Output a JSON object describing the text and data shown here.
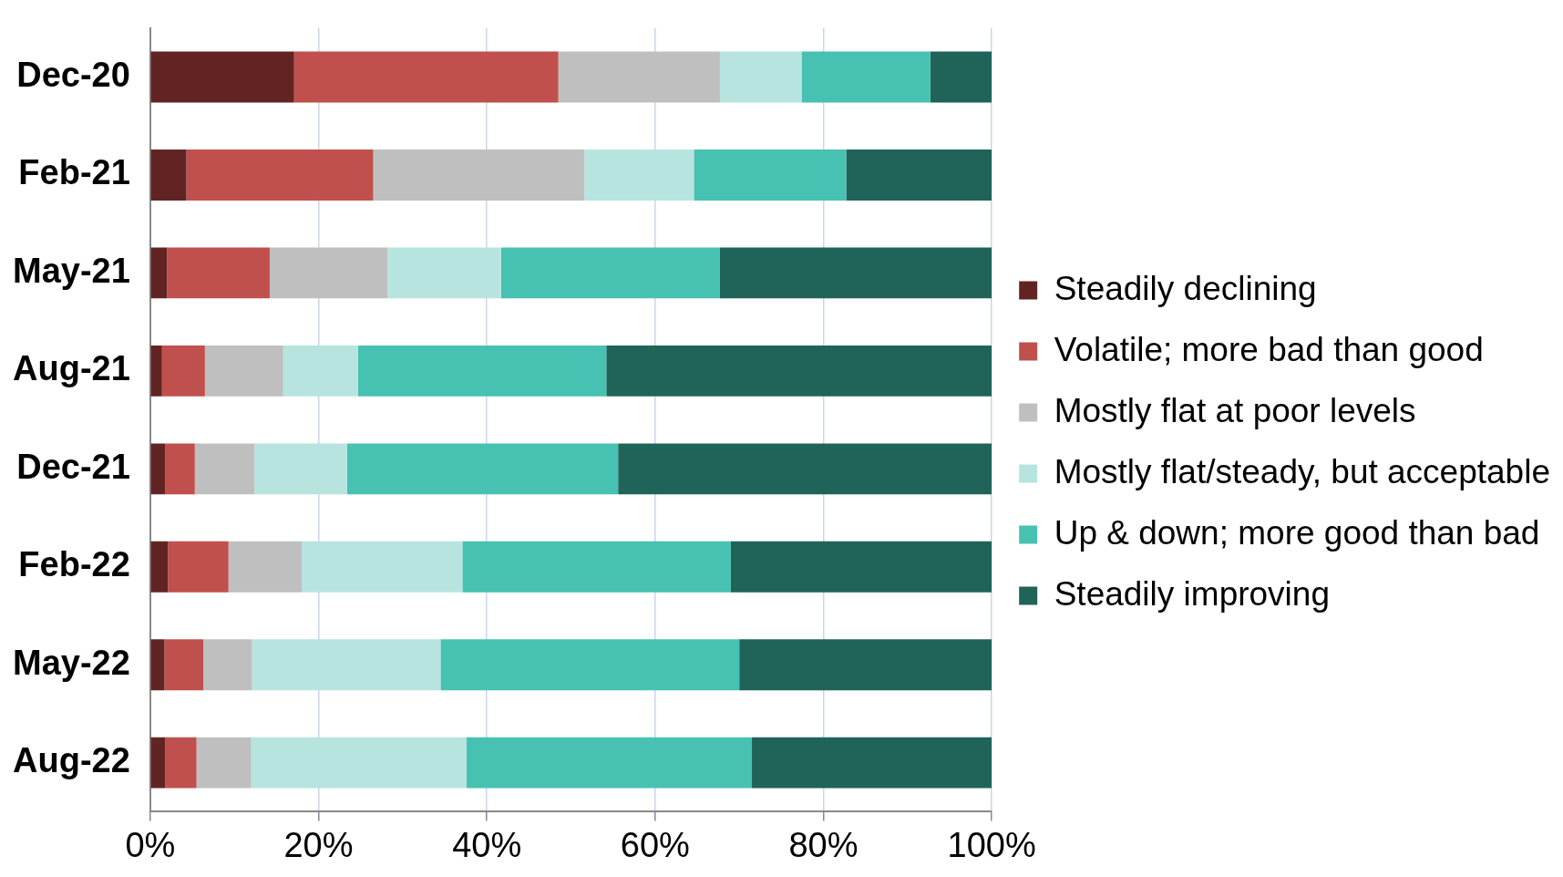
{
  "chart_data": {
    "type": "bar",
    "orientation": "horizontal",
    "stacked": true,
    "categories": [
      "Dec-20",
      "Feb-21",
      "May-21",
      "Aug-21",
      "Dec-21",
      "Feb-22",
      "May-22",
      "Aug-22"
    ],
    "series": [
      {
        "name": "Steadily declining",
        "color": "#622423",
        "values": [
          17.1,
          4.3,
          2.0,
          1.4,
          1.8,
          2.1,
          1.7,
          1.8
        ]
      },
      {
        "name": "Volatile; more bad than good",
        "color": "#c0504d",
        "values": [
          31.4,
          22.2,
          12.2,
          5.1,
          3.5,
          7.2,
          4.6,
          3.7
        ]
      },
      {
        "name": "Mostly flat at poor levels",
        "color": "#bfbfbf",
        "values": [
          19.2,
          25.1,
          14.0,
          9.3,
          7.1,
          8.7,
          5.8,
          6.5
        ]
      },
      {
        "name": "Mostly flat/steady, but acceptable",
        "color": "#b7e4df",
        "values": [
          9.7,
          13.0,
          13.5,
          8.9,
          11.0,
          19.1,
          22.4,
          25.6
        ]
      },
      {
        "name": "Up & down; more good than bad",
        "color": "#47c1b2",
        "values": [
          15.3,
          18.1,
          26.0,
          29.5,
          32.2,
          31.9,
          35.5,
          33.9
        ]
      },
      {
        "name": "Steadily improving",
        "color": "#206358",
        "values": [
          7.3,
          17.3,
          32.3,
          45.8,
          44.4,
          31.0,
          30.0,
          28.5
        ]
      }
    ],
    "xlim": [
      0,
      100
    ],
    "xticks": [
      {
        "value": 0,
        "label": "0%"
      },
      {
        "value": 20,
        "label": "20%"
      },
      {
        "value": 40,
        "label": "40%"
      },
      {
        "value": 60,
        "label": "60%"
      },
      {
        "value": 80,
        "label": "80%"
      },
      {
        "value": 100,
        "label": "100%"
      }
    ],
    "grid": "x",
    "legend": "right"
  }
}
